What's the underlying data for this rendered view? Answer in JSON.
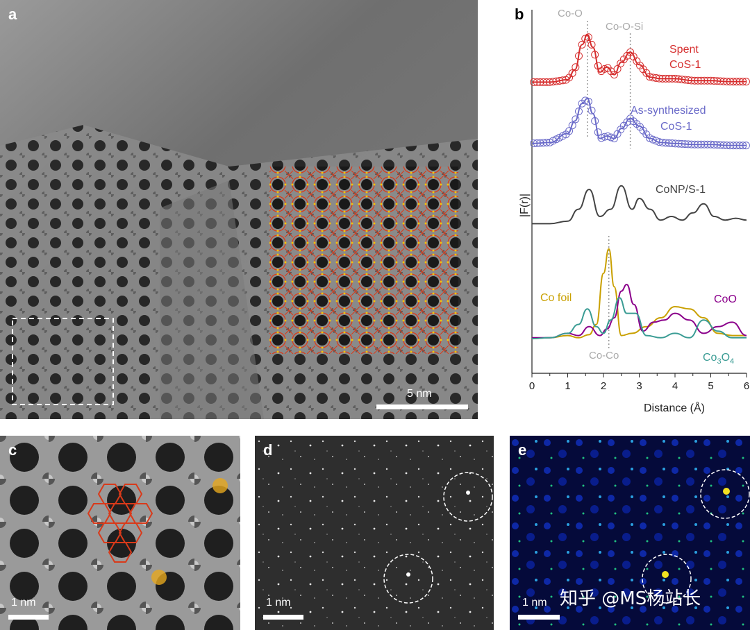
{
  "panels": {
    "a": {
      "label": "a",
      "scalebar": "5 nm"
    },
    "b": {
      "label": "b",
      "ylabel": "|F(r)|",
      "xlabel": "Distance (Å)",
      "xticks": [
        "0",
        "1",
        "2",
        "3",
        "4",
        "5",
        "6"
      ],
      "annotations": {
        "co_o": "Co-O",
        "co_o_si": "Co-O-Si",
        "co_co": "Co-Co"
      },
      "labels": {
        "spent_1": "Spent",
        "spent_2": "CoS-1",
        "as_1": "As-synthesized",
        "as_2": "CoS-1",
        "conp": "CoNP/S-1",
        "cofoil": "Co foil",
        "coo": "CoO",
        "co3o4_a": "Co",
        "co3o4_b": "3",
        "co3o4_c": "O",
        "co3o4_d": "4"
      }
    },
    "c": {
      "label": "c",
      "scalebar": "1 nm"
    },
    "d": {
      "label": "d",
      "scalebar": "1 nm"
    },
    "e": {
      "label": "e",
      "scalebar": "1 nm"
    }
  },
  "watermark": "知乎 @MS杨站长",
  "colors": {
    "spent": "#d62f2f",
    "as_synthesized": "#6b6bc9",
    "conp": "#444444",
    "co_foil": "#c9a000",
    "coo": "#8b008b",
    "co3o4": "#3a9c94",
    "guide": "#999999"
  },
  "chart_data": {
    "type": "line",
    "x_range": [
      0,
      6
    ],
    "xlabel": "Distance (Å)",
    "ylabel": "|F(r)|",
    "series": [
      {
        "name": "Spent CoS-1",
        "x": [
          0,
          0.5,
          1.0,
          1.2,
          1.4,
          1.55,
          1.7,
          1.9,
          2.1,
          2.3,
          2.5,
          2.75,
          3.0,
          3.3,
          3.6,
          4.0,
          4.5,
          5.0,
          5.5,
          6.0
        ],
        "y": [
          0.05,
          0.05,
          0.1,
          0.3,
          0.8,
          1.0,
          0.75,
          0.25,
          0.35,
          0.2,
          0.45,
          0.65,
          0.4,
          0.15,
          0.12,
          0.12,
          0.08,
          0.08,
          0.06,
          0.06
        ]
      },
      {
        "name": "As-synthesized CoS-1",
        "x": [
          0,
          0.5,
          1.0,
          1.2,
          1.4,
          1.55,
          1.7,
          1.9,
          2.1,
          2.3,
          2.5,
          2.75,
          3.0,
          3.3,
          3.6,
          4.0,
          4.5,
          5.0,
          5.5,
          6.0
        ],
        "y": [
          0.1,
          0.12,
          0.3,
          0.55,
          0.9,
          1.0,
          0.7,
          0.2,
          0.25,
          0.2,
          0.4,
          0.6,
          0.45,
          0.2,
          0.12,
          0.1,
          0.08,
          0.08,
          0.06,
          0.06
        ]
      },
      {
        "name": "CoNP/S-1",
        "x": [
          0,
          0.5,
          1.0,
          1.3,
          1.6,
          1.9,
          2.2,
          2.5,
          2.8,
          3.0,
          3.3,
          3.6,
          3.9,
          4.2,
          4.5,
          4.8,
          5.1,
          5.4,
          5.7,
          6.0
        ],
        "y": [
          0.05,
          0.05,
          0.12,
          0.45,
          1.0,
          0.25,
          0.45,
          1.1,
          0.45,
          0.75,
          0.45,
          0.15,
          0.25,
          0.15,
          0.35,
          0.6,
          0.25,
          0.15,
          0.2,
          0.15
        ]
      },
      {
        "name": "Co foil",
        "x": [
          0,
          0.5,
          1.0,
          1.3,
          1.6,
          1.8,
          2.0,
          2.15,
          2.3,
          2.5,
          2.8,
          3.2,
          3.6,
          4.0,
          4.4,
          4.8,
          5.2,
          5.6,
          6.0
        ],
        "y": [
          0.03,
          0.05,
          0.1,
          0.05,
          0.12,
          0.35,
          1.5,
          2.05,
          1.2,
          0.1,
          0.15,
          0.3,
          0.5,
          0.75,
          0.7,
          0.5,
          0.15,
          0.1,
          0.1
        ]
      },
      {
        "name": "CoO",
        "x": [
          0,
          0.5,
          1.0,
          1.3,
          1.6,
          1.9,
          2.1,
          2.3,
          2.5,
          2.65,
          2.85,
          3.1,
          3.4,
          3.7,
          4.0,
          4.4,
          4.8,
          5.2,
          5.6,
          6.0
        ],
        "y": [
          0.05,
          0.05,
          0.15,
          0.1,
          0.3,
          0.1,
          0.25,
          0.5,
          1.1,
          1.25,
          0.8,
          0.2,
          0.4,
          0.45,
          0.6,
          0.45,
          0.15,
          0.3,
          0.4,
          0.1
        ]
      },
      {
        "name": "Co3O4",
        "x": [
          0,
          0.5,
          1.0,
          1.3,
          1.55,
          1.8,
          2.0,
          2.2,
          2.45,
          2.65,
          2.9,
          3.2,
          3.6,
          4.0,
          4.4,
          4.8,
          5.2,
          5.6,
          6.0
        ],
        "y": [
          0.03,
          0.05,
          0.15,
          0.35,
          0.7,
          0.3,
          0.15,
          0.45,
          0.95,
          0.6,
          0.6,
          0.1,
          0.05,
          0.15,
          0.05,
          0.45,
          0.2,
          0.05,
          0.05
        ]
      }
    ],
    "guides": [
      {
        "label": "Co-O",
        "x": 1.55
      },
      {
        "label": "Co-O-Si",
        "x": 2.75
      },
      {
        "label": "Co-Co",
        "x": 2.15
      }
    ]
  }
}
